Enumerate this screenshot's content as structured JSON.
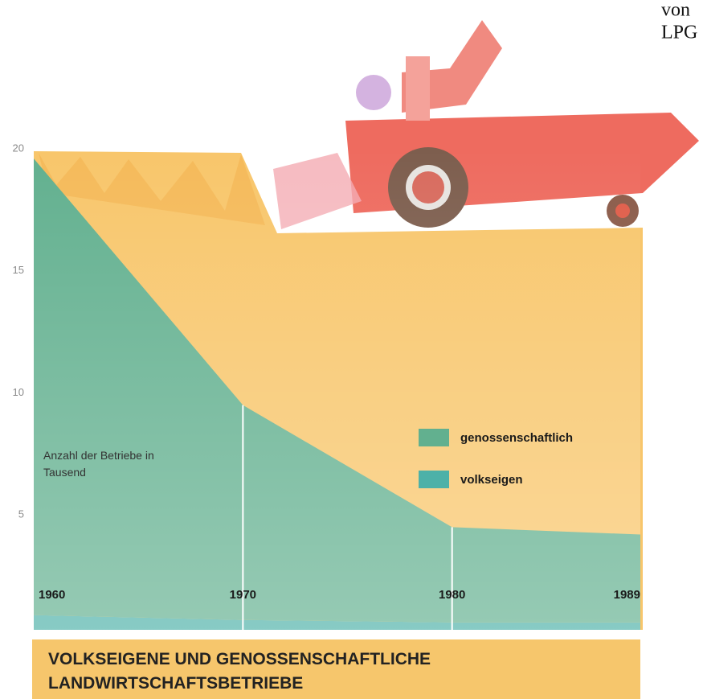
{
  "page_text": [
    "von",
    "LPG"
  ],
  "chart_data": {
    "type": "area",
    "title": "VOLKSEIGENE UND GENOSSENSCHAFTLICHE LANDWIRTSCHAFTSBETRIEBE",
    "y_label": "Anzahl der Betriebe in Tausend",
    "x": [
      1960,
      1970,
      1980,
      1989
    ],
    "xlim": [
      1960,
      1989
    ],
    "ylim": [
      0,
      20
    ],
    "yticks": [
      5,
      10,
      15,
      20
    ],
    "stacked": true,
    "grid": false,
    "series": [
      {
        "name": "genossenschaftlich",
        "color": "#62b08f",
        "values": [
          18.7,
          8.8,
          3.9,
          3.6
        ]
      },
      {
        "name": "volkseigen",
        "color": "#4db1a8",
        "values": [
          0.9,
          0.7,
          0.6,
          0.6
        ]
      }
    ]
  }
}
